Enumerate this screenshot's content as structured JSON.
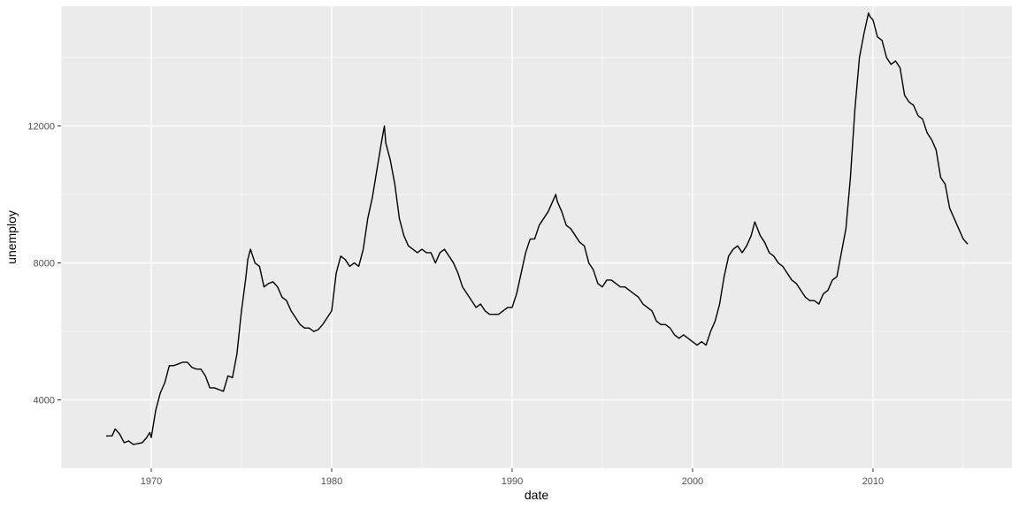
{
  "colors": {
    "panel_background": "#ebebeb",
    "grid_major": "#ffffff",
    "line": "#000000",
    "tick_text": "#4d4d4d"
  },
  "chart_data": {
    "type": "line",
    "title": "",
    "xlabel": "date",
    "ylabel": "unemploy",
    "xlim": [
      1965.0,
      2017.7
    ],
    "ylim": [
      2000,
      15500
    ],
    "x_ticks": [
      1970,
      1980,
      1990,
      2000,
      2010
    ],
    "x_tick_labels": [
      "1970",
      "1980",
      "1990",
      "2000",
      "2010"
    ],
    "y_ticks": [
      4000,
      8000,
      12000
    ],
    "y_tick_labels": [
      "4000",
      "8000",
      "12000"
    ],
    "grid": true,
    "legend": "none",
    "series": [
      {
        "x": [
          1967.5,
          1967.83,
          1968.0,
          1968.25,
          1968.5,
          1968.75,
          1969.0,
          1969.25,
          1969.5,
          1969.75,
          1969.92,
          1970.0,
          1970.25,
          1970.5,
          1970.75,
          1971.0,
          1971.25,
          1971.5,
          1971.75,
          1972.0,
          1972.25,
          1972.5,
          1972.75,
          1973.0,
          1973.25,
          1973.5,
          1973.75,
          1974.0,
          1974.25,
          1974.5,
          1974.75,
          1975.0,
          1975.25,
          1975.35,
          1975.5,
          1975.75,
          1976.0,
          1976.25,
          1976.5,
          1976.75,
          1977.0,
          1977.25,
          1977.5,
          1977.75,
          1978.0,
          1978.25,
          1978.5,
          1978.75,
          1979.0,
          1979.25,
          1979.5,
          1979.75,
          1980.0,
          1980.25,
          1980.5,
          1980.75,
          1981.0,
          1981.25,
          1981.5,
          1981.75,
          1982.0,
          1982.25,
          1982.5,
          1982.75,
          1982.92,
          1983.0,
          1983.25,
          1983.5,
          1983.75,
          1984.0,
          1984.25,
          1984.5,
          1984.75,
          1985.0,
          1985.25,
          1985.5,
          1985.75,
          1986.0,
          1986.25,
          1986.5,
          1986.75,
          1987.0,
          1987.25,
          1987.5,
          1987.75,
          1988.0,
          1988.25,
          1988.5,
          1988.75,
          1989.0,
          1989.25,
          1989.5,
          1989.75,
          1990.0,
          1990.25,
          1990.5,
          1990.75,
          1991.0,
          1991.25,
          1991.5,
          1991.75,
          1992.0,
          1992.25,
          1992.42,
          1992.5,
          1992.75,
          1993.0,
          1993.25,
          1993.5,
          1993.75,
          1994.0,
          1994.25,
          1994.5,
          1994.75,
          1995.0,
          1995.25,
          1995.5,
          1995.75,
          1996.0,
          1996.25,
          1996.5,
          1996.75,
          1997.0,
          1997.25,
          1997.5,
          1997.75,
          1998.0,
          1998.25,
          1998.5,
          1998.75,
          1999.0,
          1999.25,
          1999.5,
          1999.75,
          2000.0,
          2000.25,
          2000.5,
          2000.75,
          2001.0,
          2001.25,
          2001.5,
          2001.75,
          2002.0,
          2002.25,
          2002.5,
          2002.75,
          2003.0,
          2003.25,
          2003.45,
          2003.75,
          2004.0,
          2004.25,
          2004.5,
          2004.75,
          2005.0,
          2005.25,
          2005.5,
          2005.75,
          2006.0,
          2006.25,
          2006.5,
          2006.75,
          2007.0,
          2007.25,
          2007.5,
          2007.75,
          2008.0,
          2008.25,
          2008.5,
          2008.75,
          2009.0,
          2009.25,
          2009.5,
          2009.75,
          2009.83,
          2010.0,
          2010.25,
          2010.5,
          2010.75,
          2011.0,
          2011.25,
          2011.5,
          2011.75,
          2012.0,
          2012.25,
          2012.5,
          2012.75,
          2013.0,
          2013.25,
          2013.5,
          2013.75,
          2014.0,
          2014.25,
          2014.5,
          2014.75,
          2015.0,
          2015.25
        ],
        "y": [
          2944,
          2950,
          3150,
          3000,
          2750,
          2800,
          2700,
          2720,
          2750,
          2900,
          3050,
          2900,
          3700,
          4200,
          4500,
          5000,
          5000,
          5050,
          5100,
          5100,
          4950,
          4900,
          4900,
          4700,
          4350,
          4350,
          4300,
          4250,
          4700,
          4650,
          5350,
          6600,
          7600,
          8100,
          8400,
          8000,
          7900,
          7300,
          7400,
          7450,
          7300,
          7000,
          6900,
          6600,
          6400,
          6200,
          6100,
          6100,
          6000,
          6050,
          6200,
          6400,
          6600,
          7700,
          8200,
          8100,
          7900,
          8000,
          7900,
          8400,
          9300,
          9900,
          10700,
          11500,
          12000,
          11500,
          11000,
          10300,
          9300,
          8800,
          8500,
          8400,
          8300,
          8400,
          8300,
          8300,
          8000,
          8300,
          8400,
          8200,
          8000,
          7700,
          7300,
          7100,
          6900,
          6700,
          6800,
          6600,
          6500,
          6500,
          6500,
          6600,
          6700,
          6700,
          7100,
          7700,
          8300,
          8700,
          8700,
          9100,
          9300,
          9500,
          9800,
          10000,
          9800,
          9500,
          9100,
          9000,
          8800,
          8600,
          8500,
          8000,
          7800,
          7400,
          7300,
          7500,
          7500,
          7400,
          7300,
          7300,
          7200,
          7100,
          7000,
          6800,
          6700,
          6600,
          6300,
          6200,
          6200,
          6100,
          5900,
          5800,
          5900,
          5800,
          5700,
          5600,
          5700,
          5600,
          6000,
          6300,
          6800,
          7600,
          8200,
          8400,
          8500,
          8300,
          8500,
          8800,
          9200,
          8800,
          8600,
          8300,
          8200,
          8000,
          7900,
          7700,
          7500,
          7400,
          7200,
          7000,
          6900,
          6900,
          6800,
          7100,
          7200,
          7500,
          7600,
          8300,
          9000,
          10500,
          12500,
          14000,
          14700,
          15300,
          15200,
          15100,
          14600,
          14500,
          14000,
          13800,
          13900,
          13700,
          12900,
          12700,
          12600,
          12300,
          12200,
          11800,
          11600,
          11300,
          10500,
          10300,
          9600,
          9300,
          9000,
          8700,
          8550
        ]
      }
    ]
  }
}
